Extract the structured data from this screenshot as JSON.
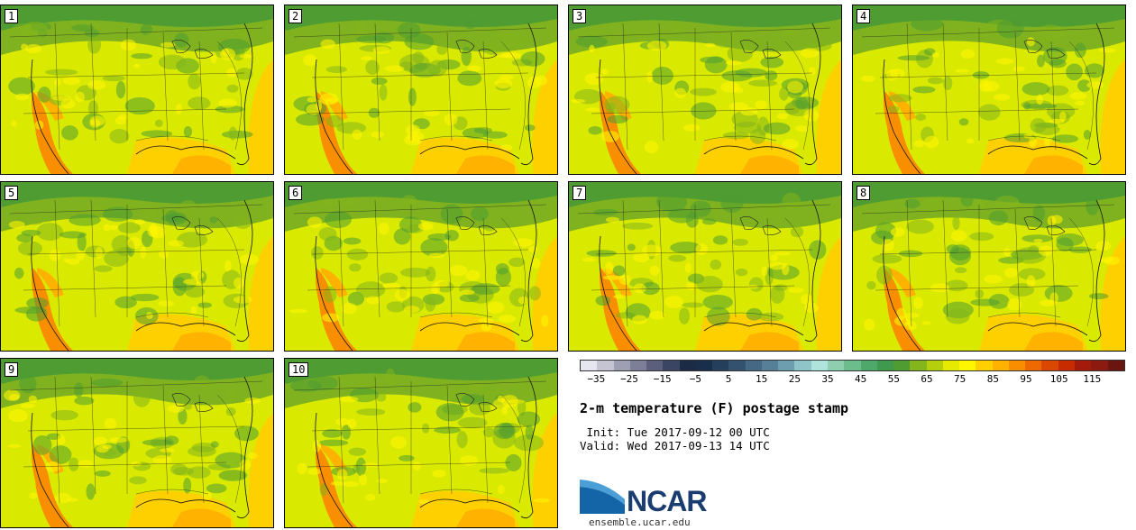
{
  "members": [
    "1",
    "2",
    "3",
    "4",
    "5",
    "6",
    "7",
    "8",
    "9",
    "10"
  ],
  "colorbar": {
    "colors": [
      "#e6e6ee",
      "#c4c4d2",
      "#9f9fb4",
      "#7d7f98",
      "#5b5f7c",
      "#3a4463",
      "#1b2a45",
      "#182e4a",
      "#243f5c",
      "#34526f",
      "#456884",
      "#577f98",
      "#6d9eaf",
      "#8fc5c8",
      "#aee4dc",
      "#8ecfb0",
      "#6bbd8c",
      "#4fa86b",
      "#3f9a4e",
      "#4f9c32",
      "#84b51c",
      "#b6cf0c",
      "#e6ea00",
      "#fff500",
      "#ffd000",
      "#ffb200",
      "#f98e00",
      "#ee6a00",
      "#da4700",
      "#c62c00",
      "#a41b0c",
      "#8c1a10",
      "#6a1510"
    ],
    "ticks": [
      "−35",
      "−25",
      "−15",
      "−5",
      "5",
      "15",
      "25",
      "35",
      "45",
      "55",
      "65",
      "75",
      "85",
      "95",
      "105",
      "115"
    ]
  },
  "title": "2-m temperature (F) postage stamp",
  "init": " Init: Tue 2017-09-12 00 UTC",
  "valid": "Valid: Wed 2017-09-13 14 UTC",
  "logo": {
    "name": "NCAR",
    "url": "ensemble.ucar.edu"
  }
}
